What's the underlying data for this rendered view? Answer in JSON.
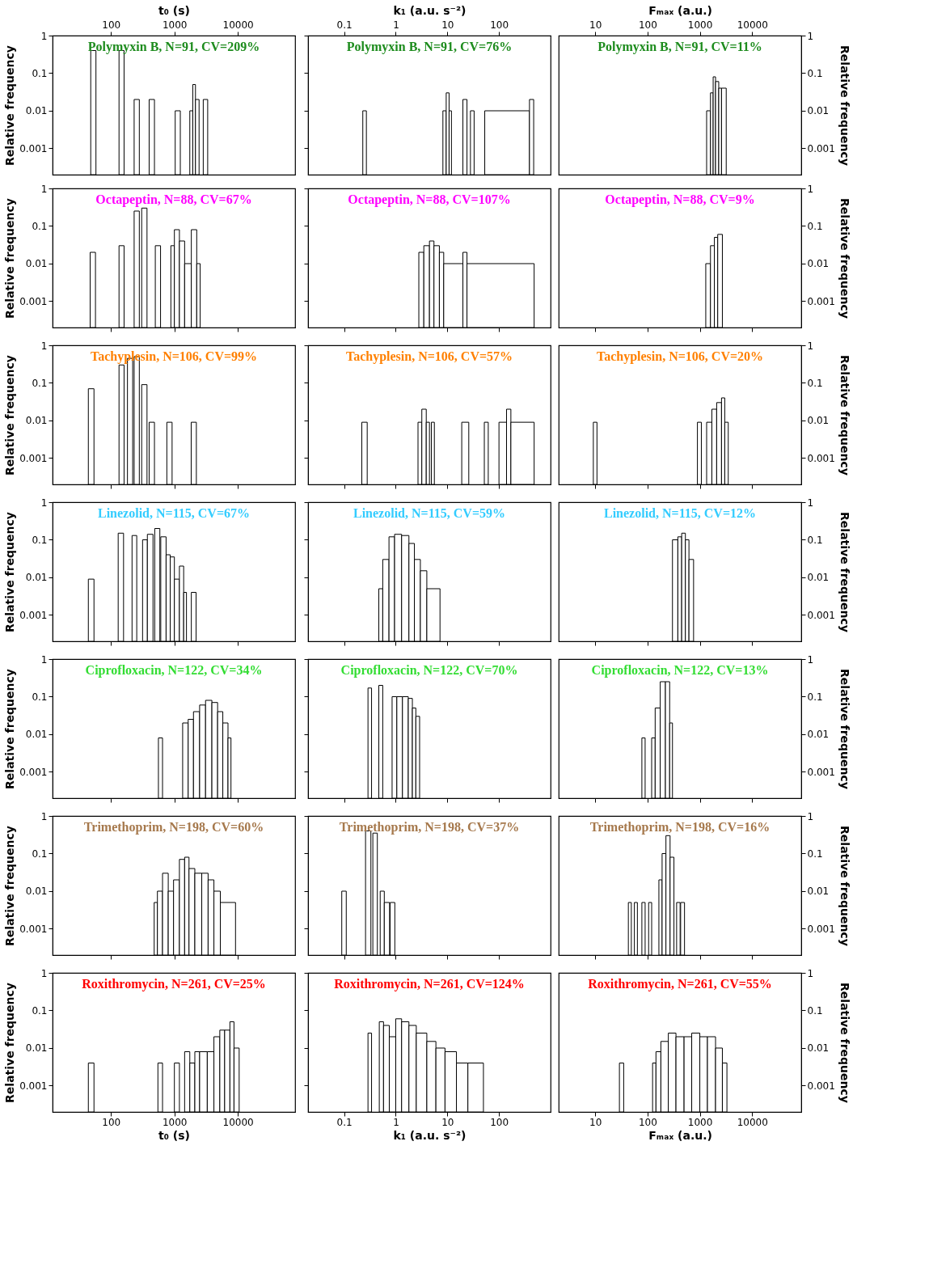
{
  "chart_data": [
    {
      "type": "histogram",
      "title": "Polymyxin B, N=91, CV=209%",
      "xlabel": "t₀ (s)",
      "ylabel": "Relative frequency",
      "color": "#000000",
      "log": "xy",
      "xlim": [
        12,
        80000
      ],
      "xticks": [
        100,
        1000,
        10000
      ],
      "ylim": [
        0.0002,
        1
      ],
      "yticks": [
        0.001,
        0.01,
        0.1,
        1
      ],
      "bins": [
        48,
        58,
        134,
        161,
        232,
        280,
        400,
        485,
        1030,
        1240,
        1750,
        1950,
        2150,
        2450,
        2850,
        3350
      ],
      "values": [
        0.4,
        null,
        0.4,
        null,
        0.02,
        null,
        0.02,
        null,
        0.01,
        null,
        0.01,
        0.05,
        0.02,
        null,
        0.02
      ]
    },
    {
      "type": "histogram",
      "title": "Polymyxin B, N=91, CV=76%",
      "xlabel": "k₁ (a.u. s⁻²)",
      "tick_labels": "x",
      "color": "#000000",
      "log": "xy",
      "xlim": [
        0.02,
        1000
      ],
      "xticks": [
        0.1,
        1,
        10,
        100
      ],
      "ylim": [
        0.0002,
        1
      ],
      "yticks": [
        0.001,
        0.01,
        0.1,
        1
      ],
      "bins": [
        0.23,
        0.27,
        8.2,
        9.5,
        10.8,
        12,
        20,
        24,
        28,
        33,
        53,
        390,
        470
      ],
      "values": [
        0.01,
        null,
        0.01,
        0.03,
        0.01,
        null,
        0.02,
        null,
        0.01,
        null,
        0.01,
        0.02
      ]
    },
    {
      "type": "histogram",
      "title": "Polymyxin B, N=91, CV=11%",
      "xlabel": "Fₘₐₓ (a.u.)",
      "ylabel": "Relative frequency",
      "color": "#000000",
      "log": "xy",
      "xlim": [
        2,
        87000
      ],
      "xticks": [
        10,
        100,
        1000,
        10000
      ],
      "ylim": [
        0.0002,
        1
      ],
      "yticks": [
        0.001,
        0.01,
        0.1,
        1
      ],
      "bins": [
        1350,
        1600,
        1800,
        2000,
        2300,
        2600,
        3200
      ],
      "values": [
        0.01,
        0.03,
        0.08,
        0.06,
        0.04,
        0.04
      ]
    },
    {
      "type": "histogram",
      "title": "Octapeptin, N=88, CV=67%",
      "ylabel": "Relative frequency",
      "tick_labels": "y",
      "color": "#000000",
      "log": "xy",
      "xlim": [
        12,
        80000
      ],
      "xticks": [
        100,
        1000,
        10000
      ],
      "ylim": [
        0.0002,
        1
      ],
      "yticks": [
        0.001,
        0.01,
        0.1,
        1
      ],
      "bins": [
        47,
        57,
        134,
        161,
        232,
        280,
        305,
        370,
        500,
        605,
        880,
        1000,
        1200,
        1450,
        1850,
        2250,
        2550
      ],
      "values": [
        0.02,
        null,
        0.03,
        null,
        0.25,
        null,
        0.3,
        null,
        0.03,
        null,
        0.03,
        0.08,
        0.04,
        0.01,
        0.08,
        0.01
      ]
    },
    {
      "type": "histogram",
      "title": "Octapeptin, N=88, CV=107%",
      "tick_labels": false,
      "color": "#000000",
      "log": "xy",
      "xlim": [
        0.02,
        1000
      ],
      "xticks": [
        0.1,
        1,
        10,
        100
      ],
      "ylim": [
        0.0002,
        1
      ],
      "yticks": [
        0.001,
        0.01,
        0.1,
        1
      ],
      "bins": [
        2.8,
        3.5,
        4.5,
        5.5,
        7,
        8.5,
        20,
        24,
        480
      ],
      "values": [
        0.02,
        0.03,
        0.04,
        0.03,
        0.02,
        0.01,
        0.02,
        0.01
      ]
    },
    {
      "type": "histogram",
      "title": "Octapeptin, N=88, CV=9%",
      "ylabel": "Relative frequency",
      "tick_labels": "y",
      "color": "#000000",
      "log": "xy",
      "xlim": [
        2,
        87000
      ],
      "xticks": [
        10,
        100,
        1000,
        10000
      ],
      "ylim": [
        0.0002,
        1
      ],
      "yticks": [
        0.001,
        0.01,
        0.1,
        1
      ],
      "bins": [
        1300,
        1600,
        1900,
        2200,
        2700
      ],
      "values": [
        0.01,
        0.03,
        0.05,
        0.06
      ]
    },
    {
      "type": "histogram",
      "title": "Tachyplesin, N=106, CV=99%",
      "ylabel": "Relative frequency",
      "tick_labels": "y",
      "color": "#000000",
      "log": "xy",
      "xlim": [
        12,
        80000
      ],
      "xticks": [
        100,
        1000,
        10000
      ],
      "ylim": [
        0.0002,
        1
      ],
      "yticks": [
        0.001,
        0.01,
        0.1,
        1
      ],
      "bins": [
        44,
        54,
        134,
        161,
        182,
        220,
        232,
        280,
        305,
        370,
        400,
        485,
        760,
        920,
        1840,
        2220
      ],
      "values": [
        0.07,
        null,
        0.3,
        null,
        0.45,
        null,
        0.5,
        null,
        0.09,
        null,
        0.009,
        null,
        0.009,
        null,
        0.009
      ]
    },
    {
      "type": "histogram",
      "title": "Tachyplesin, N=106, CV=57%",
      "tick_labels": false,
      "color": "#000000",
      "log": "xy",
      "xlim": [
        0.02,
        1000
      ],
      "xticks": [
        0.1,
        1,
        10,
        100
      ],
      "ylim": [
        0.0002,
        1
      ],
      "yticks": [
        0.001,
        0.01,
        0.1,
        1
      ],
      "bins": [
        0.22,
        0.28,
        2.7,
        3.2,
        3.9,
        4.5,
        4.9,
        5.6,
        19,
        26,
        52,
        62,
        100,
        140,
        170,
        480
      ],
      "values": [
        0.009,
        null,
        0.009,
        0.02,
        0.009,
        null,
        0.009,
        null,
        0.009,
        null,
        0.009,
        null,
        0.009,
        0.02,
        0.009
      ]
    },
    {
      "type": "histogram",
      "title": "Tachyplesin, N=106, CV=20%",
      "ylabel": "Relative frequency",
      "tick_labels": "y",
      "color": "#000000",
      "log": "xy",
      "xlim": [
        2,
        87000
      ],
      "xticks": [
        10,
        100,
        1000,
        10000
      ],
      "ylim": [
        0.0002,
        1
      ],
      "yticks": [
        0.001,
        0.01,
        0.1,
        1
      ],
      "bins": [
        9.2,
        10.8,
        900,
        1070,
        1350,
        1700,
        2100,
        2600,
        3000,
        3500
      ],
      "values": [
        0.009,
        null,
        0.009,
        null,
        0.009,
        0.02,
        0.03,
        0.04,
        0.009
      ]
    },
    {
      "type": "histogram",
      "title": "Linezolid, N=115, CV=67%",
      "ylabel": "Relative frequency",
      "tick_labels": "y",
      "color": "#000000",
      "log": "xy",
      "xlim": [
        12,
        80000
      ],
      "xticks": [
        100,
        1000,
        10000
      ],
      "ylim": [
        0.0002,
        1
      ],
      "yticks": [
        0.001,
        0.01,
        0.1,
        1
      ],
      "bins": [
        44,
        54,
        130,
        158,
        215,
        255,
        315,
        375,
        460,
        490,
        590,
        610,
        740,
        860,
        1000,
        1200,
        1400,
        1550,
        1850,
        2200
      ],
      "values": [
        0.009,
        null,
        0.15,
        null,
        0.13,
        null,
        0.1,
        0.14,
        null,
        0.2,
        null,
        0.12,
        0.04,
        0.035,
        0.009,
        0.02,
        0.004,
        null,
        0.004
      ]
    },
    {
      "type": "histogram",
      "title": "Linezolid, N=115, CV=59%",
      "tick_labels": false,
      "color": "#000000",
      "log": "xy",
      "xlim": [
        0.02,
        1000
      ],
      "xticks": [
        0.1,
        1,
        10,
        100
      ],
      "ylim": [
        0.0002,
        1
      ],
      "yticks": [
        0.001,
        0.01,
        0.1,
        1
      ],
      "bins": [
        0.47,
        0.56,
        0.74,
        0.95,
        1.3,
        1.8,
        2.3,
        3,
        4,
        7.2
      ],
      "values": [
        0.005,
        0.03,
        0.12,
        0.14,
        0.13,
        0.08,
        0.03,
        0.015,
        0.005
      ]
    },
    {
      "type": "histogram",
      "title": "Linezolid, N=115, CV=12%",
      "ylabel": "Relative frequency",
      "tick_labels": "y",
      "color": "#000000",
      "log": "xy",
      "xlim": [
        2,
        87000
      ],
      "xticks": [
        10,
        100,
        1000,
        10000
      ],
      "ylim": [
        0.0002,
        1
      ],
      "yticks": [
        0.001,
        0.01,
        0.1,
        1
      ],
      "bins": [
        300,
        380,
        450,
        530,
        620,
        760
      ],
      "values": [
        0.1,
        0.12,
        0.15,
        0.1,
        0.03
      ]
    },
    {
      "type": "histogram",
      "title": "Ciprofloxacin, N=122, CV=34%",
      "ylabel": "Relative frequency",
      "tick_labels": "y",
      "color": "#000000",
      "log": "xy",
      "xlim": [
        12,
        80000
      ],
      "xticks": [
        100,
        1000,
        10000
      ],
      "ylim": [
        0.0002,
        1
      ],
      "yticks": [
        0.001,
        0.01,
        0.1,
        1
      ],
      "bins": [
        560,
        650,
        1350,
        1650,
        2000,
        2500,
        3100,
        3900,
        4800,
        5800,
        7000,
        7800
      ],
      "values": [
        0.008,
        null,
        0.02,
        0.025,
        0.04,
        0.06,
        0.08,
        0.07,
        0.04,
        0.02,
        0.008
      ]
    },
    {
      "type": "histogram",
      "title": "Ciprofloxacin, N=122, CV=70%",
      "tick_labels": false,
      "color": "#000000",
      "log": "xy",
      "xlim": [
        0.02,
        1000
      ],
      "xticks": [
        0.1,
        1,
        10,
        100
      ],
      "ylim": [
        0.0002,
        1
      ],
      "yticks": [
        0.001,
        0.01,
        0.1,
        1
      ],
      "bins": [
        0.29,
        0.34,
        0.47,
        0.56,
        0.85,
        1.05,
        1.35,
        1.75,
        2.1,
        2.45,
        2.9
      ],
      "values": [
        0.17,
        null,
        0.2,
        null,
        0.1,
        0.1,
        0.1,
        0.09,
        0.05,
        0.03
      ]
    },
    {
      "type": "histogram",
      "title": "Ciprofloxacin, N=122, CV=13%",
      "ylabel": "Relative frequency",
      "tick_labels": "y",
      "color": "#000000",
      "log": "xy",
      "xlim": [
        2,
        87000
      ],
      "xticks": [
        10,
        100,
        1000,
        10000
      ],
      "ylim": [
        0.0002,
        1
      ],
      "yticks": [
        0.001,
        0.01,
        0.1,
        1
      ],
      "bins": [
        78,
        90,
        120,
        140,
        175,
        220,
        265,
        300
      ],
      "values": [
        0.008,
        null,
        0.008,
        0.05,
        0.25,
        0.25,
        0.02
      ]
    },
    {
      "type": "histogram",
      "title": "Trimethoprim, N=198, CV=60%",
      "ylabel": "Relative frequency",
      "tick_labels": "y",
      "color": "#000000",
      "log": "xy",
      "xlim": [
        12,
        80000
      ],
      "xticks": [
        100,
        1000,
        10000
      ],
      "ylim": [
        0.0002,
        1
      ],
      "yticks": [
        0.001,
        0.01,
        0.1,
        1
      ],
      "bins": [
        480,
        540,
        650,
        800,
        970,
        1200,
        1450,
        1700,
        2100,
        2700,
        3400,
        4200,
        5300,
        9200
      ],
      "values": [
        0.005,
        0.01,
        0.03,
        0.01,
        0.02,
        0.07,
        0.08,
        0.04,
        0.03,
        0.03,
        0.02,
        0.01,
        0.005
      ]
    },
    {
      "type": "histogram",
      "title": "Trimethoprim, N=198, CV=37%",
      "tick_labels": false,
      "color": "#000000",
      "log": "xy",
      "xlim": [
        0.02,
        1000
      ],
      "xticks": [
        0.1,
        1,
        10,
        100
      ],
      "ylim": [
        0.0002,
        1
      ],
      "yticks": [
        0.001,
        0.01,
        0.1,
        1
      ],
      "bins": [
        0.09,
        0.11,
        0.26,
        0.33,
        0.36,
        0.44,
        0.5,
        0.6,
        0.76,
        0.78,
        0.96
      ],
      "values": [
        0.01,
        null,
        0.4,
        null,
        0.35,
        null,
        0.01,
        0.005,
        null,
        0.005
      ]
    },
    {
      "type": "histogram",
      "title": "Trimethoprim, N=198, CV=16%",
      "ylabel": "Relative frequency",
      "tick_labels": "y",
      "color": "#000000",
      "log": "xy",
      "xlim": [
        2,
        87000
      ],
      "xticks": [
        10,
        100,
        1000,
        10000
      ],
      "ylim": [
        0.0002,
        1
      ],
      "yticks": [
        0.001,
        0.01,
        0.1,
        1
      ],
      "bins": [
        43,
        49,
        56,
        64,
        78,
        90,
        105,
        120,
        165,
        190,
        225,
        270,
        320,
        360,
        420,
        430,
        510
      ],
      "values": [
        0.005,
        null,
        0.005,
        null,
        0.005,
        null,
        0.005,
        null,
        0.02,
        0.1,
        0.3,
        0.08,
        null,
        0.005,
        null,
        0.005
      ]
    },
    {
      "type": "histogram",
      "title": "Roxithromycin, N=261, CV=25%",
      "xlabel": "t₀ (s)",
      "ylabel": "Relative frequency",
      "color": "#000000",
      "log": "xy",
      "xlim": [
        12,
        80000
      ],
      "xticks": [
        100,
        1000,
        10000
      ],
      "ylim": [
        0.0002,
        1
      ],
      "yticks": [
        0.001,
        0.01,
        0.1,
        1
      ],
      "bins": [
        44,
        54,
        550,
        650,
        1000,
        1200,
        1450,
        1750,
        2100,
        2500,
        3300,
        4200,
        5200,
        6200,
        7500,
        8700,
        10500
      ],
      "values": [
        0.004,
        null,
        0.004,
        null,
        0.004,
        null,
        0.008,
        0.004,
        0.008,
        0.008,
        0.008,
        0.02,
        0.03,
        0.03,
        0.05,
        0.01
      ]
    },
    {
      "type": "histogram",
      "title": "Roxithromycin, N=261, CV=124%",
      "xlabel": "k₁ (a.u. s⁻²)",
      "tick_labels": "x",
      "color": "#000000",
      "log": "xy",
      "xlim": [
        0.02,
        1000
      ],
      "xticks": [
        0.1,
        1,
        10,
        100
      ],
      "ylim": [
        0.0002,
        1
      ],
      "yticks": [
        0.001,
        0.01,
        0.1,
        1
      ],
      "bins": [
        0.29,
        0.34,
        0.48,
        0.58,
        0.75,
        1.0,
        1.3,
        1.8,
        2.5,
        4,
        6,
        9,
        15,
        25,
        50
      ],
      "values": [
        0.025,
        null,
        0.05,
        0.04,
        0.02,
        0.06,
        0.05,
        0.04,
        0.025,
        0.015,
        0.01,
        0.008,
        0.004,
        0.004
      ]
    },
    {
      "type": "histogram",
      "title": "Roxithromycin, N=261, CV=55%",
      "xlabel": "Fₘₐₓ (a.u.)",
      "ylabel": "Relative frequency",
      "color": "#000000",
      "log": "xy",
      "xlim": [
        2,
        87000
      ],
      "xticks": [
        10,
        100,
        1000,
        10000
      ],
      "ylim": [
        0.0002,
        1
      ],
      "yticks": [
        0.001,
        0.01,
        0.1,
        1
      ],
      "bins": [
        29,
        35,
        125,
        145,
        180,
        250,
        350,
        500,
        700,
        1000,
        1400,
        2000,
        2700,
        3300
      ],
      "values": [
        0.004,
        null,
        0.004,
        0.008,
        0.015,
        0.025,
        0.02,
        0.02,
        0.025,
        0.02,
        0.02,
        0.01,
        0.004
      ]
    }
  ]
}
